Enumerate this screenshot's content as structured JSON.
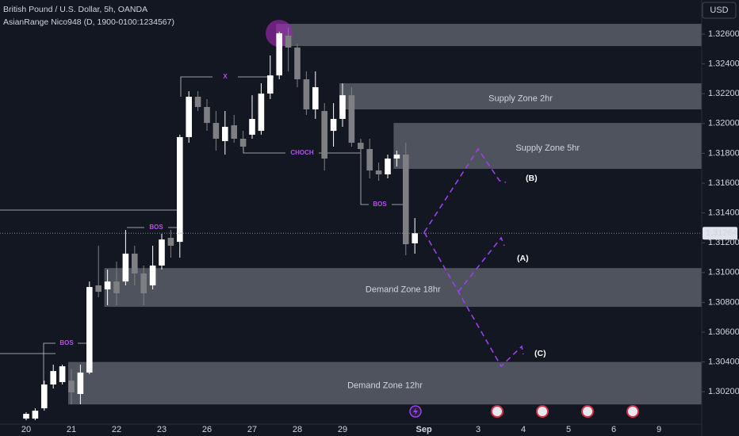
{
  "chart_data": {
    "type": "candlestick",
    "title": "British Pound / U.S. Dollar, 5h, OANDA",
    "subtitle": "AsianRange Nico948 (D, 1900-0100:1234567)",
    "currency": "USD",
    "categories": [
      "20",
      null,
      null,
      null,
      null,
      "21",
      null,
      null,
      null,
      null,
      "22",
      null,
      null,
      null,
      null,
      "23",
      null,
      null,
      null,
      null,
      "26",
      null,
      null,
      null,
      null,
      "27",
      null,
      null,
      null,
      null,
      "28",
      null,
      null,
      null,
      null,
      "29",
      null,
      null,
      null,
      null,
      null,
      null,
      null,
      null,
      "Sep",
      null,
      null,
      null,
      null,
      null,
      "3",
      null,
      null,
      null,
      null,
      "4",
      null,
      null,
      null,
      null,
      "5",
      null,
      null,
      null,
      null,
      "6",
      null,
      null,
      null,
      null,
      "9",
      null,
      null,
      null,
      null
    ],
    "open": [
      1.3002,
      1.3002,
      1.30089,
      1.30249,
      1.30265,
      1.30275,
      1.30185,
      1.30329,
      1.30914,
      1.30887,
      1.3094,
      1.3094,
      1.31127,
      1.30994,
      1.30914,
      1.31047,
      1.31233,
      1.31206,
      1.31909,
      1.3218,
      1.32111,
      1.32004,
      1.31882,
      1.31988,
      1.31898,
      1.31925,
      1.31951,
      1.32201,
      1.32323,
      1.3259,
      1.3251,
      1.32297,
      1.32095,
      1.32084,
      1.31951,
      1.32031,
      1.3219,
      1.31871,
      1.31829,
      1.31685,
      1.31659,
      1.31765,
      1.31792,
      1.31196,
      null,
      null,
      null,
      null,
      null,
      null,
      null,
      null,
      null,
      null,
      null,
      null,
      null,
      null,
      null,
      null,
      null,
      null,
      null,
      null,
      null,
      null,
      null,
      null,
      null,
      null,
      null,
      null,
      null,
      null,
      null
    ],
    "high": [
      1.30063,
      1.30089,
      1.30275,
      1.30382,
      1.30382,
      1.30355,
      1.30382,
      1.3094,
      1.3118,
      1.3102,
      1.31073,
      1.31286,
      1.3118,
      1.31047,
      1.3118,
      1.3126,
      1.31286,
      1.31925,
      1.32217,
      1.32217,
      1.32164,
      1.32084,
      1.32084,
      1.32058,
      1.31951,
      1.3219,
      1.3227,
      1.32457,
      1.32616,
      1.32643,
      1.32536,
      1.3235,
      1.3235,
      1.32137,
      1.32137,
      1.3227,
      1.32244,
      1.31898,
      1.31898,
      1.31738,
      1.31792,
      1.31818,
      1.31871,
      1.31366,
      null,
      null,
      null,
      null,
      null,
      null,
      null,
      null,
      null,
      null,
      null,
      null,
      null,
      null,
      null,
      null,
      null,
      null,
      null,
      null,
      null,
      null,
      null,
      null,
      null,
      null,
      null,
      null,
      null,
      null,
      null
    ],
    "low": [
      1.30009,
      1.30009,
      1.30073,
      1.30222,
      1.30249,
      1.30116,
      1.30116,
      1.30318,
      1.30834,
      1.30781,
      1.30781,
      1.30914,
      1.30914,
      1.30781,
      1.30887,
      1.3102,
      1.311,
      1.311,
      1.31871,
      1.32084,
      1.31951,
      1.31818,
      1.31792,
      1.31871,
      1.31818,
      1.31898,
      1.31925,
      1.32164,
      1.32297,
      1.3235,
      1.32244,
      1.32058,
      1.32031,
      1.31685,
      1.31845,
      1.31978,
      1.31845,
      1.31792,
      1.31632,
      1.31616,
      1.31632,
      1.31712,
      1.31116,
      1.31127,
      null,
      null,
      null,
      null,
      null,
      null,
      null,
      null,
      null,
      null,
      null,
      null,
      null,
      null,
      null,
      null,
      null,
      null,
      null,
      null,
      null,
      null,
      null,
      null,
      null,
      null,
      null,
      null,
      null,
      null,
      null
    ],
    "close": [
      1.30052,
      1.30073,
      1.30249,
      1.30339,
      1.30371,
      1.30196,
      1.30329,
      1.30903,
      1.30871,
      1.3094,
      1.30861,
      1.31127,
      1.30994,
      1.30861,
      1.31047,
      1.31222,
      1.3118,
      1.31909,
      1.3218,
      1.32111,
      1.32004,
      1.31898,
      1.31978,
      1.31898,
      1.31845,
      1.32031,
      1.32201,
      1.32323,
      1.32606,
      1.3251,
      1.32297,
      1.32095,
      1.32244,
      1.31765,
      1.32031,
      1.3219,
      1.31871,
      1.31829,
      1.31685,
      1.31659,
      1.31765,
      1.31792,
      1.3119,
      1.31264,
      null,
      null,
      null,
      null,
      null,
      null,
      null,
      null,
      null,
      null,
      null,
      null,
      null,
      null,
      null,
      null,
      null,
      null,
      null,
      null,
      null,
      null,
      null,
      null,
      null,
      null,
      null,
      null,
      null,
      null,
      null
    ],
    "up_color": "#ffffff",
    "down_color": "#7e7f83",
    "ylim": [
      1.29983,
      1.32829
    ],
    "yticks": [
      {
        "value": 1.302,
        "label": "1.30200"
      },
      {
        "value": 1.304,
        "label": "1.30400"
      },
      {
        "value": 1.306,
        "label": "1.30600"
      },
      {
        "value": 1.308,
        "label": "1.30800"
      },
      {
        "value": 1.31,
        "label": "1.31000"
      },
      {
        "value": 1.312,
        "label": "1.31200"
      },
      {
        "value": 1.314,
        "label": "1.31400"
      },
      {
        "value": 1.316,
        "label": "1.31600"
      },
      {
        "value": 1.318,
        "label": "1.31800"
      },
      {
        "value": 1.32,
        "label": "1.32000"
      },
      {
        "value": 1.322,
        "label": "1.32200"
      },
      {
        "value": 1.324,
        "label": "1.32400"
      },
      {
        "value": 1.326,
        "label": "1.32600"
      }
    ],
    "grid": false,
    "current_price": 1.31264,
    "zones": [
      {
        "low": 1.3252,
        "high": 1.32669,
        "start": 28
      },
      {
        "label": "Supply Zone 2hr",
        "low": 1.32095,
        "high": 1.3227,
        "start": 35
      },
      {
        "label": "Supply Zone 5hr",
        "low": 1.31696,
        "high": 1.32004,
        "start": 41
      },
      {
        "label": "Demand Zone 18hr",
        "low": 1.3077,
        "high": 1.3103,
        "start": 9
      },
      {
        "label": "Demand Zone 12hr",
        "low": 1.30115,
        "high": 1.304,
        "start": 5
      }
    ],
    "annotations": [
      "X",
      "CHOCH",
      "BOS",
      "BOS",
      "BOS",
      "(A)",
      "(B)",
      "(C)"
    ]
  }
}
